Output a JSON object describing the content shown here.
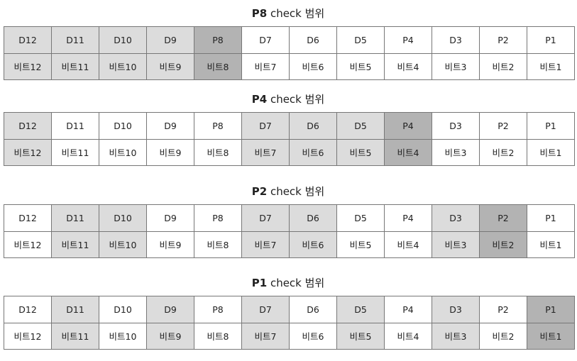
{
  "colors": {
    "checked": "#dcdcdc",
    "parity_target": "#b3b3b3",
    "unchecked": "#ffffff"
  },
  "sections": [
    {
      "title_bold": "P8",
      "title_rest": "check 범위",
      "header": [
        "D12",
        "D11",
        "D10",
        "D9",
        "P8",
        "D7",
        "D6",
        "D5",
        "P4",
        "D3",
        "P2",
        "P1"
      ],
      "bits": [
        "비트12",
        "비트11",
        "비트10",
        "비트9",
        "비트8",
        "비트7",
        "비트6",
        "비트5",
        "비트4",
        "비트3",
        "비트2",
        "비트1"
      ],
      "shading": [
        "light",
        "light",
        "light",
        "light",
        "dark",
        "white",
        "white",
        "white",
        "white",
        "white",
        "white",
        "white"
      ]
    },
    {
      "title_bold": "P4",
      "title_rest": "check 범위",
      "header": [
        "D12",
        "D11",
        "D10",
        "D9",
        "P8",
        "D7",
        "D6",
        "D5",
        "P4",
        "D3",
        "P2",
        "P1"
      ],
      "bits": [
        "비트12",
        "비트11",
        "비트10",
        "비트9",
        "비트8",
        "비트7",
        "비트6",
        "비트5",
        "비트4",
        "비트3",
        "비트2",
        "비트1"
      ],
      "shading": [
        "light",
        "white",
        "white",
        "white",
        "white",
        "light",
        "light",
        "light",
        "dark",
        "white",
        "white",
        "white"
      ]
    },
    {
      "title_bold": "P2",
      "title_rest": "check 범위",
      "header": [
        "D12",
        "D11",
        "D10",
        "D9",
        "P8",
        "D7",
        "D6",
        "D5",
        "P4",
        "D3",
        "P2",
        "P1"
      ],
      "bits": [
        "비트12",
        "비트11",
        "비트10",
        "비트9",
        "비트8",
        "비트7",
        "비트6",
        "비트5",
        "비트4",
        "비트3",
        "비트2",
        "비트1"
      ],
      "shading": [
        "white",
        "light",
        "light",
        "white",
        "white",
        "light",
        "light",
        "white",
        "white",
        "light",
        "dark",
        "white"
      ]
    },
    {
      "title_bold": "P1",
      "title_rest": "check 범위",
      "header": [
        "D12",
        "D11",
        "D10",
        "D9",
        "P8",
        "D7",
        "D6",
        "D5",
        "P4",
        "D3",
        "P2",
        "P1"
      ],
      "bits": [
        "비트12",
        "비트11",
        "비트10",
        "비트9",
        "비트8",
        "비트7",
        "비트6",
        "비트5",
        "비트4",
        "비트3",
        "비트2",
        "비트1"
      ],
      "shading": [
        "white",
        "light",
        "white",
        "light",
        "white",
        "light",
        "white",
        "light",
        "white",
        "light",
        "white",
        "dark"
      ]
    }
  ]
}
